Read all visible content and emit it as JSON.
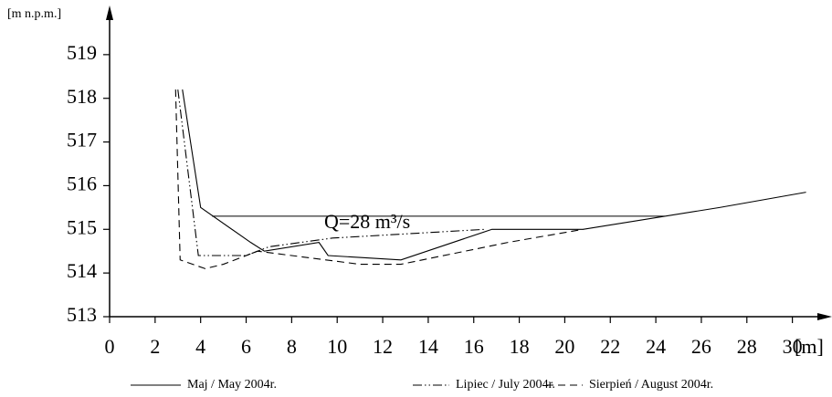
{
  "chart_data": {
    "type": "line",
    "y_label": "[m n.p.m.]",
    "x_label": "[m]",
    "annotation": "Q=28 m³/s",
    "water_level": {
      "y": 515.3,
      "x": [
        4.5,
        24.4
      ]
    },
    "xlim": [
      0,
      31.5
    ],
    "ylim": [
      513,
      520
    ],
    "xticks": [
      0,
      2,
      4,
      6,
      8,
      10,
      12,
      14,
      16,
      18,
      20,
      22,
      24,
      26,
      28,
      30
    ],
    "yticks": [
      513,
      514,
      515,
      516,
      517,
      518,
      519
    ],
    "series": [
      {
        "name": "Maj / May 2004r.",
        "color": "#000000",
        "style": "solid",
        "x": [
          3.2,
          4.0,
          6.2,
          6.8,
          9.2,
          9.6,
          12.8,
          16.8,
          20.8,
          26.8,
          30.6
        ],
        "values": [
          518.2,
          515.5,
          514.7,
          514.5,
          514.7,
          514.4,
          514.3,
          515.0,
          515.0,
          515.5,
          515.85
        ]
      },
      {
        "name": "Lipiec / July 2004r.",
        "color": "#000000",
        "style": "dashdot",
        "x": [
          3.0,
          3.9,
          6.0,
          7.0,
          9.8,
          16.5
        ],
        "values": [
          518.2,
          514.4,
          514.4,
          514.6,
          514.8,
          515.0
        ]
      },
      {
        "name": "Sierpień / August 2004r.",
        "color": "#000000",
        "style": "dashed",
        "x": [
          2.9,
          3.1,
          4.2,
          5.0,
          6.5,
          8.0,
          9.5,
          11.0,
          12.8,
          17.5,
          20.8
        ],
        "values": [
          518.2,
          514.3,
          514.1,
          514.2,
          514.5,
          514.4,
          514.3,
          514.2,
          514.2,
          514.7,
          515.0
        ]
      }
    ]
  }
}
